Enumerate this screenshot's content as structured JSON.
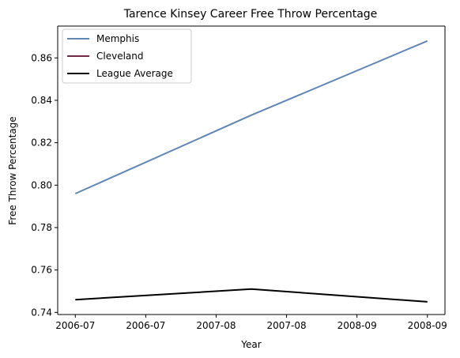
{
  "chart_data": {
    "type": "line",
    "title": "Tarence Kinsey Career Free Throw Percentage",
    "xlabel": "Year",
    "ylabel": "Free Throw Percentage",
    "x_tick_labels": [
      "2006-07",
      "2006-07",
      "2007-08",
      "2007-08",
      "2008-09",
      "2008-09"
    ],
    "x_tick_values": [
      0,
      0.4,
      0.8,
      1.2,
      1.6,
      2.0
    ],
    "x": [
      0,
      1,
      2
    ],
    "ylim": [
      0.739,
      0.875
    ],
    "y_ticks": [
      0.74,
      0.76,
      0.78,
      0.8,
      0.82,
      0.84,
      0.86
    ],
    "y_tick_labels": [
      "0.74",
      "0.76",
      "0.78",
      "0.80",
      "0.82",
      "0.84",
      "0.86"
    ],
    "xlim": [
      -0.1,
      2.1
    ],
    "grid": false,
    "legend_position": "top-left",
    "series": [
      {
        "name": "Memphis",
        "color": "#5f86b6",
        "x": [
          0,
          1,
          2
        ],
        "values": [
          0.796,
          0.833,
          0.868
        ]
      },
      {
        "name": "Cleveland",
        "color": "#6f2a47",
        "x": [],
        "values": []
      },
      {
        "name": "League Average",
        "color": "#000000",
        "x": [
          0,
          1,
          2
        ],
        "values": [
          0.746,
          0.751,
          0.745
        ]
      }
    ]
  }
}
